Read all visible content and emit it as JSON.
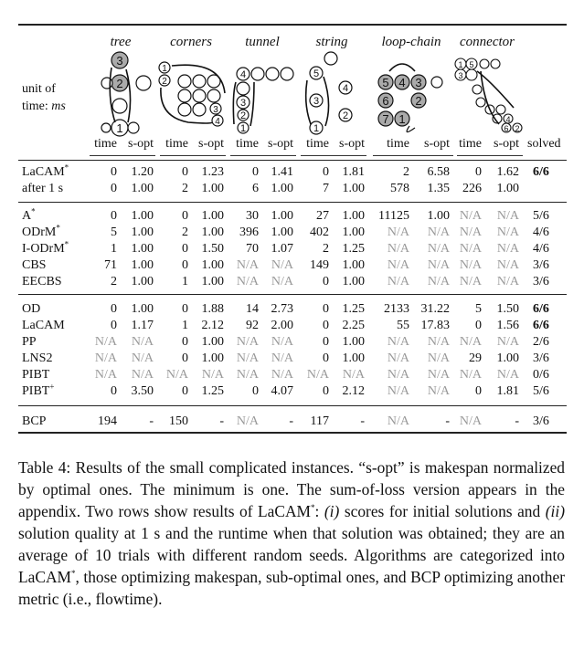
{
  "instances": [
    "tree",
    "corners",
    "tunnel",
    "string",
    "loop-chain",
    "connector"
  ],
  "unit_label": {
    "line1": "unit of",
    "line2_prefix": "time: ",
    "line2_unit": "ms"
  },
  "column_headers": {
    "time": "time",
    "sopt": "s-opt",
    "solved": "solved"
  },
  "diagram_labels": {
    "tree": [
      "3",
      "2",
      "1"
    ],
    "corners": [
      "1",
      "2",
      "3",
      "4"
    ],
    "tunnel": [
      "4",
      "3",
      "2",
      "1"
    ],
    "string": [
      "5",
      "4",
      "3",
      "2",
      "1"
    ],
    "loop_chain": [
      "5",
      "4",
      "3",
      "6",
      "2",
      "7",
      "1"
    ],
    "connector": [
      "1",
      "5",
      "3",
      "4",
      "6",
      "2"
    ]
  },
  "groups": [
    {
      "rows": [
        {
          "name": "LaCAM",
          "sup": "*",
          "cells": [
            "0",
            "1.20",
            "0",
            "1.23",
            "0",
            "1.41",
            "0",
            "1.81",
            "2",
            "6.58",
            "0",
            "1.62"
          ],
          "solved": "6/6",
          "solved_bold": true
        },
        {
          "name": "after 1 s",
          "sup": "",
          "cells": [
            "0",
            "1.00",
            "2",
            "1.00",
            "6",
            "1.00",
            "7",
            "1.00",
            "578",
            "1.35",
            "226",
            "1.00"
          ],
          "solved": "",
          "solved_bold": false
        }
      ]
    },
    {
      "rows": [
        {
          "name": "A",
          "sup": "*",
          "cells": [
            "0",
            "1.00",
            "0",
            "1.00",
            "30",
            "1.00",
            "27",
            "1.00",
            "11125",
            "1.00",
            "N/A",
            "N/A"
          ],
          "solved": "5/6",
          "solved_bold": false
        },
        {
          "name": "ODrM",
          "sup": "*",
          "cells": [
            "5",
            "1.00",
            "2",
            "1.00",
            "396",
            "1.00",
            "402",
            "1.00",
            "N/A",
            "N/A",
            "N/A",
            "N/A"
          ],
          "solved": "4/6",
          "solved_bold": false
        },
        {
          "name": "I-ODrM",
          "sup": "*",
          "cells": [
            "1",
            "1.00",
            "0",
            "1.50",
            "70",
            "1.07",
            "2",
            "1.25",
            "N/A",
            "N/A",
            "N/A",
            "N/A"
          ],
          "solved": "4/6",
          "solved_bold": false
        },
        {
          "name": "CBS",
          "sup": "",
          "cells": [
            "71",
            "1.00",
            "0",
            "1.00",
            "N/A",
            "N/A",
            "149",
            "1.00",
            "N/A",
            "N/A",
            "N/A",
            "N/A"
          ],
          "solved": "3/6",
          "solved_bold": false
        },
        {
          "name": "EECBS",
          "sup": "",
          "cells": [
            "2",
            "1.00",
            "1",
            "1.00",
            "N/A",
            "N/A",
            "0",
            "1.00",
            "N/A",
            "N/A",
            "N/A",
            "N/A"
          ],
          "solved": "3/6",
          "solved_bold": false
        }
      ]
    },
    {
      "rows": [
        {
          "name": "OD",
          "sup": "",
          "cells": [
            "0",
            "1.00",
            "0",
            "1.88",
            "14",
            "2.73",
            "0",
            "1.25",
            "2133",
            "31.22",
            "5",
            "1.50"
          ],
          "solved": "6/6",
          "solved_bold": true
        },
        {
          "name": "LaCAM",
          "sup": "",
          "cells": [
            "0",
            "1.17",
            "1",
            "2.12",
            "92",
            "2.00",
            "0",
            "2.25",
            "55",
            "17.83",
            "0",
            "1.56"
          ],
          "solved": "6/6",
          "solved_bold": true
        },
        {
          "name": "PP",
          "sup": "",
          "cells": [
            "N/A",
            "N/A",
            "0",
            "1.00",
            "N/A",
            "N/A",
            "0",
            "1.00",
            "N/A",
            "N/A",
            "N/A",
            "N/A"
          ],
          "solved": "2/6",
          "solved_bold": false
        },
        {
          "name": "LNS2",
          "sup": "",
          "cells": [
            "N/A",
            "N/A",
            "0",
            "1.00",
            "N/A",
            "N/A",
            "0",
            "1.00",
            "N/A",
            "N/A",
            "29",
            "1.00"
          ],
          "solved": "3/6",
          "solved_bold": false
        },
        {
          "name": "PIBT",
          "sup": "",
          "cells": [
            "N/A",
            "N/A",
            "N/A",
            "N/A",
            "N/A",
            "N/A",
            "N/A",
            "N/A",
            "N/A",
            "N/A",
            "N/A",
            "N/A"
          ],
          "solved": "0/6",
          "solved_bold": false
        },
        {
          "name": "PIBT",
          "sup": "+",
          "cells": [
            "0",
            "3.50",
            "0",
            "1.25",
            "0",
            "4.07",
            "0",
            "2.12",
            "N/A",
            "N/A",
            "0",
            "1.81"
          ],
          "solved": "5/6",
          "solved_bold": false
        }
      ]
    },
    {
      "rows": [
        {
          "name": "BCP",
          "sup": "",
          "cells": [
            "194",
            "-",
            "150",
            "-",
            "N/A",
            "-",
            "117",
            "-",
            "N/A",
            "-",
            "N/A",
            "-"
          ],
          "solved": "3/6",
          "solved_bold": false
        }
      ]
    }
  ],
  "caption": {
    "text_a": "Table 4: Results of the small complicated instances. “s-opt” is makespan normalized by optimal ones. The minimum is one. The sum-of-loss version appears in the appendix. Two rows show results of LaCAM",
    "sup_a": "*",
    "text_b": ": ",
    "item1": "(i)",
    "text_c": " scores for initial solutions and ",
    "item2": "(ii)",
    "text_d": " solution quality at 1 s and the runtime when that solution was obtained; they are an average of 10 trials with different random seeds. Algorithms are categorized into LaCAM",
    "sup_b": "*",
    "text_e": ", those optimizing makespan, sub-optimal ones, and BCP optimizing another metric (i.e., flowtime)."
  }
}
